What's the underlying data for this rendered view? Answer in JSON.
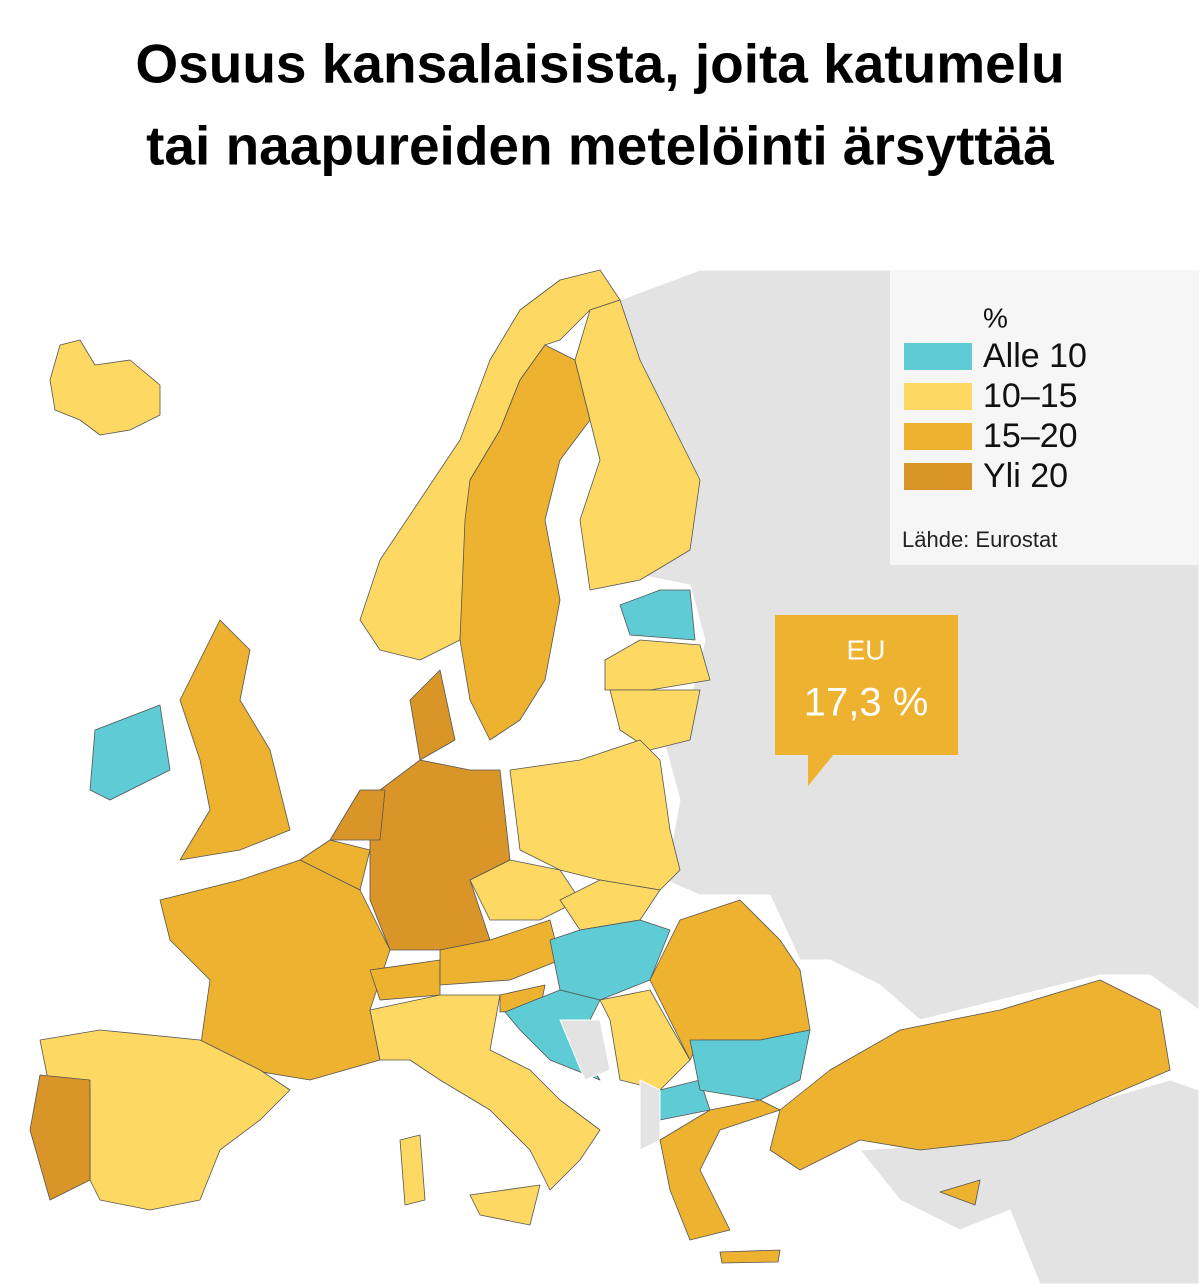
{
  "chart_data": {
    "type": "choropleth",
    "title": [
      "Osuus kansalaisista, joita katumelu",
      "tai naapureiden metelöinti ärsyttää"
    ],
    "legend": {
      "title": "%",
      "items": [
        {
          "label": "Alle 10",
          "color": "#5fcbd4"
        },
        {
          "label": "10–15",
          "color": "#fdd963"
        },
        {
          "label": "15–20",
          "color": "#edb22f"
        },
        {
          "label": "Yli 20",
          "color": "#d99528"
        }
      ]
    },
    "source": "Lähde: Eurostat",
    "eu_callout": {
      "label": "EU",
      "value": 17.3,
      "value_label": "17,3 %",
      "color": "#edb22f"
    }
  }
}
